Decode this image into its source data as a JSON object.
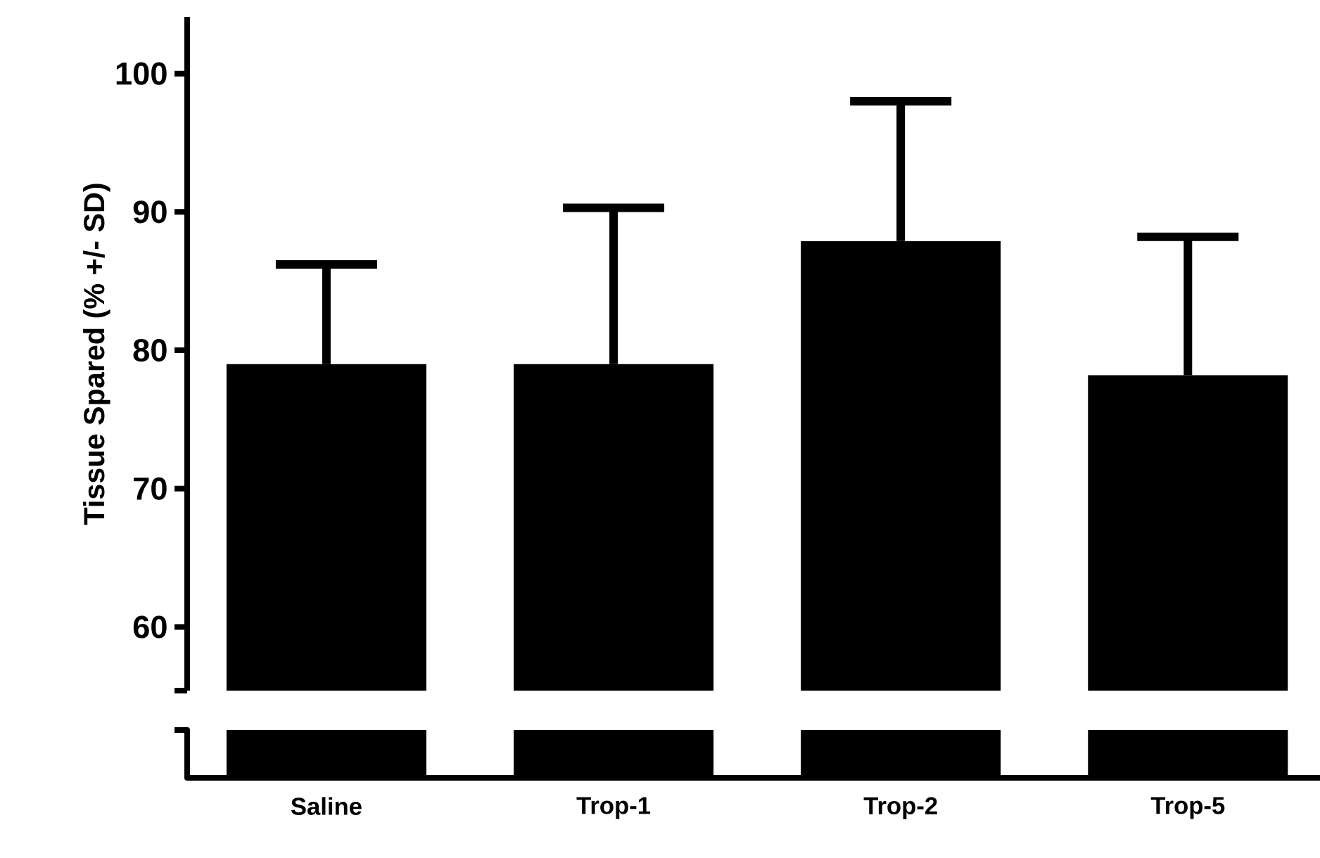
{
  "chart_data": {
    "type": "bar",
    "ylabel": "Tissue Spared (% +/- SD)",
    "categories": [
      "Saline",
      "Trop-1",
      "Trop-2",
      "Trop-5"
    ],
    "values": [
      79.0,
      79.0,
      87.9,
      78.2
    ],
    "errors": [
      [
        79.0,
        86.2
      ],
      [
        79.0,
        90.3
      ],
      [
        87.9,
        98.0
      ],
      [
        78.2,
        88.2
      ]
    ],
    "color": "#000000",
    "ylim": [
      55.4,
      104.1
    ],
    "yticks": [
      60,
      70,
      80,
      90,
      100
    ]
  }
}
